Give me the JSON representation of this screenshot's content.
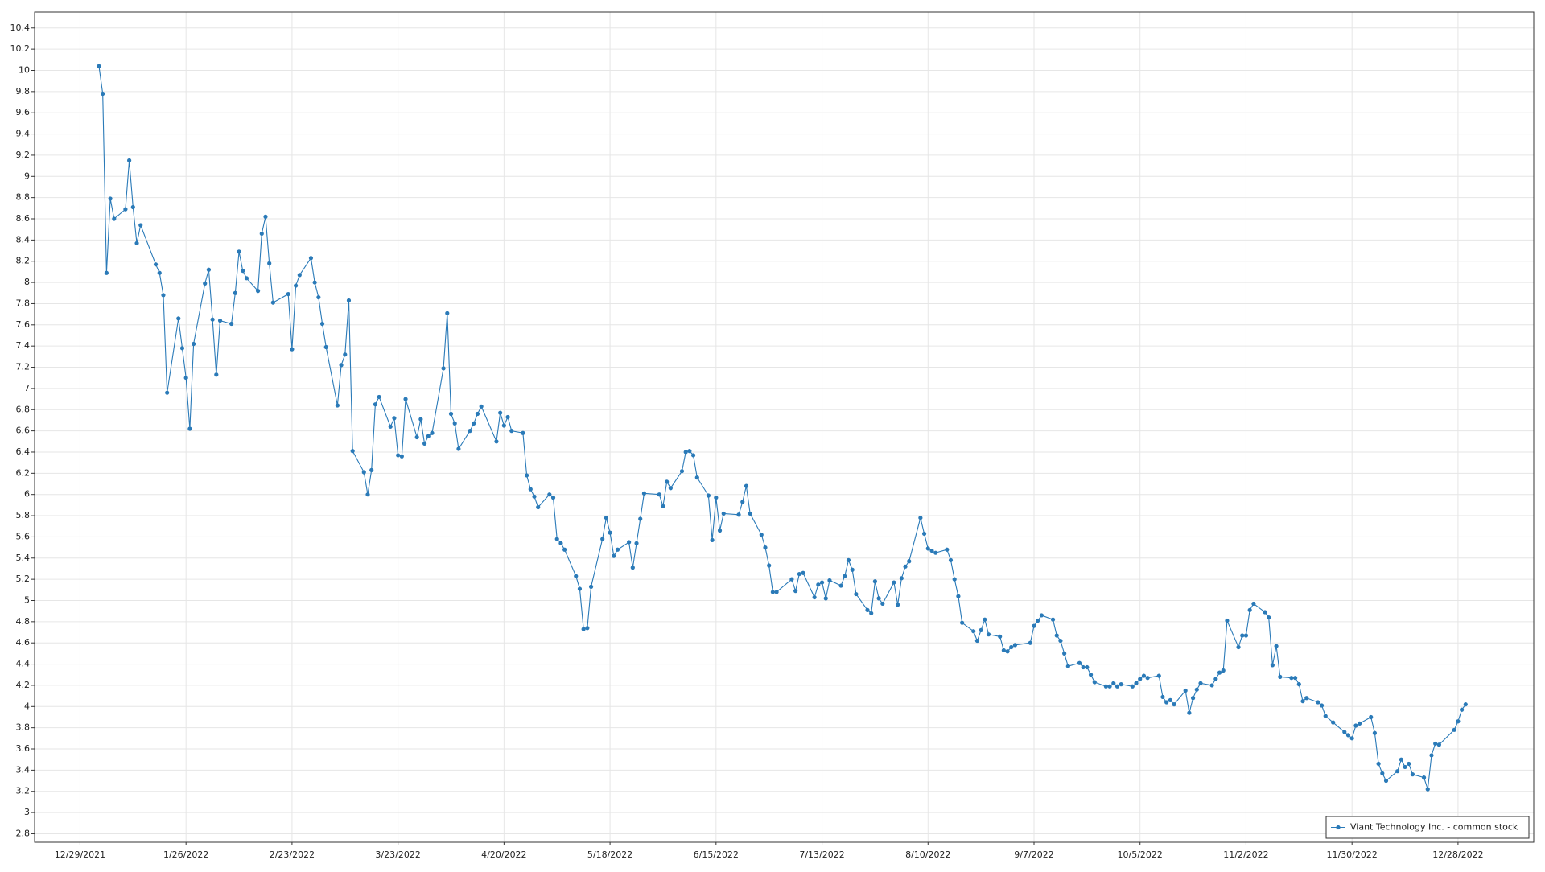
{
  "chart_data": {
    "type": "line",
    "xlim": [
      "12/17/2021",
      "1/17/2023"
    ],
    "xticks": [
      "12/29/2021",
      "1/26/2022",
      "2/23/2022",
      "3/23/2022",
      "4/20/2022",
      "5/18/2022",
      "6/15/2022",
      "7/13/2022",
      "8/10/2022",
      "9/7/2022",
      "10/5/2022",
      "11/2/2022",
      "11/30/2022",
      "12/28/2022"
    ],
    "ylim": [
      2.72,
      10.55
    ],
    "yticks": [
      2.8,
      3,
      3.2,
      3.4,
      3.6,
      3.8,
      4,
      4.2,
      4.4,
      4.6,
      4.8,
      5,
      5.2,
      5.4,
      5.6,
      5.8,
      6,
      6.2,
      6.4,
      6.6,
      6.8,
      7,
      7.2,
      7.4,
      7.6,
      7.8,
      8,
      8.2,
      8.4,
      8.6,
      8.8,
      9,
      9.2,
      9.4,
      9.6,
      9.8,
      10,
      10.2,
      {
        "value": 10.4,
        "label": "10,4"
      }
    ],
    "grid": true,
    "legend": "bottom-right",
    "x": [
      "1/3/2022",
      "1/4/2022",
      "1/5/2022",
      "1/6/2022",
      "1/7/2022",
      "1/10/2022",
      "1/11/2022",
      "1/12/2022",
      "1/13/2022",
      "1/14/2022",
      "1/18/2022",
      "1/19/2022",
      "1/20/2022",
      "1/21/2022",
      "1/24/2022",
      "1/25/2022",
      "1/26/2022",
      "1/27/2022",
      "1/28/2022",
      "1/31/2022",
      "2/1/2022",
      "2/2/2022",
      "2/3/2022",
      "2/4/2022",
      "2/7/2022",
      "2/8/2022",
      "2/9/2022",
      "2/10/2022",
      "2/11/2022",
      "2/14/2022",
      "2/15/2022",
      "2/16/2022",
      "2/17/2022",
      "2/18/2022",
      "2/22/2022",
      "2/23/2022",
      "2/24/2022",
      "2/25/2022",
      "2/28/2022",
      "3/1/2022",
      "3/2/2022",
      "3/3/2022",
      "3/4/2022",
      "3/7/2022",
      "3/8/2022",
      "3/9/2022",
      "3/10/2022",
      "3/11/2022",
      "3/14/2022",
      "3/15/2022",
      "3/16/2022",
      "3/17/2022",
      "3/18/2022",
      "3/21/2022",
      "3/22/2022",
      "3/23/2022",
      "3/24/2022",
      "3/25/2022",
      "3/28/2022",
      "3/29/2022",
      "3/30/2022",
      "3/31/2022",
      "4/1/2022",
      "4/4/2022",
      "4/5/2022",
      "4/6/2022",
      "4/7/2022",
      "4/8/2022",
      "4/11/2022",
      "4/12/2022",
      "4/13/2022",
      "4/14/2022",
      "4/18/2022",
      "4/19/2022",
      "4/20/2022",
      "4/21/2022",
      "4/22/2022",
      "4/25/2022",
      "4/26/2022",
      "4/27/2022",
      "4/28/2022",
      "4/29/2022",
      "5/2/2022",
      "5/3/2022",
      "5/4/2022",
      "5/5/2022",
      "5/6/2022",
      "5/9/2022",
      "5/10/2022",
      "5/11/2022",
      "5/12/2022",
      "5/13/2022",
      "5/16/2022",
      "5/17/2022",
      "5/18/2022",
      "5/19/2022",
      "5/20/2022",
      "5/23/2022",
      "5/24/2022",
      "5/25/2022",
      "5/26/2022",
      "5/27/2022",
      "5/31/2022",
      "6/1/2022",
      "6/2/2022",
      "6/3/2022",
      "6/6/2022",
      "6/7/2022",
      "6/8/2022",
      "6/9/2022",
      "6/10/2022",
      "6/13/2022",
      "6/14/2022",
      "6/15/2022",
      "6/16/2022",
      "6/17/2022",
      "6/21/2022",
      "6/22/2022",
      "6/23/2022",
      "6/24/2022",
      "6/27/2022",
      "6/28/2022",
      "6/29/2022",
      "6/30/2022",
      "7/1/2022",
      "7/5/2022",
      "7/6/2022",
      "7/7/2022",
      "7/8/2022",
      "7/11/2022",
      "7/12/2022",
      "7/13/2022",
      "7/14/2022",
      "7/15/2022",
      "7/18/2022",
      "7/19/2022",
      "7/20/2022",
      "7/21/2022",
      "7/22/2022",
      "7/25/2022",
      "7/26/2022",
      "7/27/2022",
      "7/28/2022",
      "7/29/2022",
      "8/1/2022",
      "8/2/2022",
      "8/3/2022",
      "8/4/2022",
      "8/5/2022",
      "8/8/2022",
      "8/9/2022",
      "8/10/2022",
      "8/11/2022",
      "8/12/2022",
      "8/15/2022",
      "8/16/2022",
      "8/17/2022",
      "8/18/2022",
      "8/19/2022",
      "8/22/2022",
      "8/23/2022",
      "8/24/2022",
      "8/25/2022",
      "8/26/2022",
      "8/29/2022",
      "8/30/2022",
      "8/31/2022",
      "9/1/2022",
      "9/2/2022",
      "9/6/2022",
      "9/7/2022",
      "9/8/2022",
      "9/9/2022",
      "9/12/2022",
      "9/13/2022",
      "9/14/2022",
      "9/15/2022",
      "9/16/2022",
      "9/19/2022",
      "9/20/2022",
      "9/21/2022",
      "9/22/2022",
      "9/23/2022",
      "9/26/2022",
      "9/27/2022",
      "9/28/2022",
      "9/29/2022",
      "9/30/2022",
      "10/3/2022",
      "10/4/2022",
      "10/5/2022",
      "10/6/2022",
      "10/7/2022",
      "10/10/2022",
      "10/11/2022",
      "10/12/2022",
      "10/13/2022",
      "10/14/2022",
      "10/17/2022",
      "10/18/2022",
      "10/19/2022",
      "10/20/2022",
      "10/21/2022",
      "10/24/2022",
      "10/25/2022",
      "10/26/2022",
      "10/27/2022",
      "10/28/2022",
      "10/31/2022",
      "11/1/2022",
      "11/2/2022",
      "11/3/2022",
      "11/4/2022",
      "11/7/2022",
      "11/8/2022",
      "11/9/2022",
      "11/10/2022",
      "11/11/2022",
      "11/14/2022",
      "11/15/2022",
      "11/16/2022",
      "11/17/2022",
      "11/18/2022",
      "11/21/2022",
      "11/22/2022",
      "11/23/2022",
      "11/25/2022",
      "11/28/2022",
      "11/29/2022",
      "11/30/2022",
      "12/1/2022",
      "12/2/2022",
      "12/5/2022",
      "12/6/2022",
      "12/7/2022",
      "12/8/2022",
      "12/9/2022",
      "12/12/2022",
      "12/13/2022",
      "12/14/2022",
      "12/15/2022",
      "12/16/2022",
      "12/19/2022",
      "12/20/2022",
      "12/21/2022",
      "12/22/2022",
      "12/23/2022",
      "12/27/2022",
      "12/28/2022",
      "12/29/2022",
      "12/30/2022"
    ],
    "series": [
      {
        "name": "Viant Technology Inc. - common stock",
        "color": "#2a7ab8",
        "values": [
          10.04,
          9.78,
          8.09,
          8.79,
          8.6,
          8.69,
          9.15,
          8.71,
          8.37,
          8.54,
          8.17,
          8.09,
          7.88,
          6.96,
          7.66,
          7.38,
          7.1,
          6.62,
          7.42,
          7.99,
          8.12,
          7.65,
          7.13,
          7.64,
          7.61,
          7.9,
          8.29,
          8.11,
          8.04,
          7.92,
          8.46,
          8.62,
          8.18,
          7.81,
          7.89,
          7.37,
          7.97,
          8.07,
          8.23,
          8.0,
          7.86,
          7.61,
          7.39,
          6.84,
          7.22,
          7.32,
          7.83,
          6.41,
          6.21,
          6.0,
          6.23,
          6.85,
          6.92,
          6.64,
          6.72,
          6.37,
          6.36,
          6.9,
          6.54,
          6.71,
          6.48,
          6.55,
          6.58,
          7.19,
          7.71,
          6.76,
          6.67,
          6.43,
          6.6,
          6.67,
          6.76,
          6.83,
          6.5,
          6.77,
          6.65,
          6.73,
          6.6,
          6.58,
          6.18,
          6.05,
          5.98,
          5.88,
          6.0,
          5.97,
          5.58,
          5.54,
          5.48,
          5.23,
          5.11,
          4.73,
          4.74,
          5.13,
          5.58,
          5.78,
          5.64,
          5.42,
          5.48,
          5.55,
          5.31,
          5.54,
          5.77,
          6.01,
          6.0,
          5.89,
          6.12,
          6.06,
          6.22,
          6.4,
          6.41,
          6.37,
          6.16,
          5.99,
          5.57,
          5.97,
          5.66,
          5.82,
          5.81,
          5.93,
          6.08,
          5.82,
          5.62,
          5.5,
          5.33,
          5.08,
          5.08,
          5.2,
          5.09,
          5.25,
          5.26,
          5.03,
          5.15,
          5.17,
          5.02,
          5.19,
          5.14,
          5.23,
          5.38,
          5.29,
          5.06,
          4.91,
          4.88,
          5.18,
          5.02,
          4.97,
          5.17,
          4.96,
          5.21,
          5.32,
          5.37,
          5.78,
          5.63,
          5.49,
          5.47,
          5.45,
          5.48,
          5.38,
          5.2,
          5.04,
          4.79,
          4.71,
          4.62,
          4.72,
          4.82,
          4.68,
          4.66,
          4.53,
          4.52,
          4.56,
          4.58,
          4.6,
          4.76,
          4.81,
          4.86,
          4.82,
          4.67,
          4.62,
          4.5,
          4.38,
          4.41,
          4.37,
          4.37,
          4.3,
          4.23,
          4.19,
          4.19,
          4.22,
          4.19,
          4.21,
          4.19,
          4.22,
          4.26,
          4.29,
          4.27,
          4.29,
          4.09,
          4.04,
          4.06,
          4.02,
          4.15,
          3.94,
          4.08,
          4.16,
          4.22,
          4.2,
          4.26,
          4.32,
          4.34,
          4.81,
          4.56,
          4.67,
          4.67,
          4.91,
          4.97,
          4.89,
          4.84,
          4.39,
          4.57,
          4.28,
          4.27,
          4.27,
          4.21,
          4.05,
          4.08,
          4.04,
          4.01,
          3.91,
          3.85,
          3.76,
          3.73,
          3.7,
          3.82,
          3.84,
          3.9,
          3.75,
          3.46,
          3.37,
          3.3,
          3.39,
          3.5,
          3.43,
          3.46,
          3.36,
          3.33,
          3.22,
          3.54,
          3.65,
          3.64,
          3.78,
          3.86,
          3.97,
          4.02
        ]
      }
    ]
  }
}
